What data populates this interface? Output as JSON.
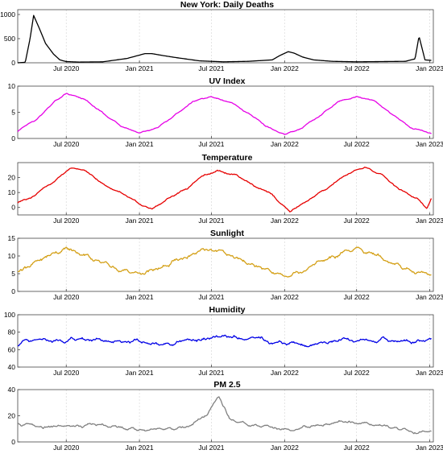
{
  "chart_data": [
    {
      "type": "line",
      "title": "New York: Daily Deaths",
      "color": "#000000",
      "x_ticks": [
        "Jul 2020",
        "Jan 2021",
        "Jul 2021",
        "Jan 2022",
        "Jul 2022",
        "Jan 2023"
      ],
      "y_ticks": [
        "0",
        "500",
        "1000"
      ],
      "ylim": [
        0,
        1100
      ],
      "grid": "x",
      "x": [
        "2020-03-01",
        "2020-03-20",
        "2020-04-01",
        "2020-04-10",
        "2020-04-25",
        "2020-05-10",
        "2020-05-30",
        "2020-06-15",
        "2020-07-01",
        "2020-08-01",
        "2020-10-01",
        "2020-12-01",
        "2021-01-15",
        "2021-02-01",
        "2021-03-01",
        "2021-04-01",
        "2021-06-01",
        "2021-08-01",
        "2021-10-01",
        "2021-12-01",
        "2021-12-20",
        "2022-01-10",
        "2022-01-25",
        "2022-02-15",
        "2022-03-15",
        "2022-05-01",
        "2022-07-01",
        "2022-09-01",
        "2022-11-01",
        "2022-11-15",
        "2022-11-25",
        "2022-12-05",
        "2022-12-20",
        "2023-01-05"
      ],
      "y": [
        0,
        10,
        500,
        980,
        700,
        400,
        180,
        60,
        25,
        15,
        20,
        90,
        190,
        190,
        150,
        110,
        40,
        20,
        30,
        60,
        150,
        230,
        200,
        120,
        60,
        30,
        20,
        25,
        30,
        60,
        80,
        550,
        60,
        50
      ]
    },
    {
      "type": "line",
      "title": "UV Index",
      "color": "#e600e6",
      "x_ticks": [
        "Jul 2020",
        "Jan 2021",
        "Jul 2021",
        "Jan 2022",
        "Jul 2022",
        "Jan 2023"
      ],
      "y_ticks": [
        "0",
        "5",
        "10"
      ],
      "ylim": [
        0,
        10
      ],
      "grid": "x",
      "x": [
        "2020-03-01",
        "2020-04-15",
        "2020-06-01",
        "2020-07-01",
        "2020-08-15",
        "2020-10-01",
        "2020-11-15",
        "2021-01-01",
        "2021-02-15",
        "2021-04-01",
        "2021-05-15",
        "2021-07-01",
        "2021-08-15",
        "2021-10-01",
        "2021-11-15",
        "2022-01-01",
        "2022-02-15",
        "2022-04-01",
        "2022-05-15",
        "2022-07-01",
        "2022-08-15",
        "2022-10-01",
        "2022-11-15",
        "2023-01-05"
      ],
      "y": [
        1.5,
        3.5,
        7,
        8.5,
        7.5,
        4.8,
        2.5,
        1,
        2,
        4.5,
        7,
        8,
        7,
        4.8,
        2.3,
        0.8,
        2,
        4.5,
        7,
        8,
        7.2,
        4.5,
        2,
        1
      ]
    },
    {
      "type": "line",
      "title": "Temperature",
      "color": "#e60000",
      "x_ticks": [
        "Jul 2020",
        "Jan 2021",
        "Jul 2021",
        "Jan 2022",
        "Jul 2022",
        "Jan 2023"
      ],
      "y_ticks": [
        "0",
        "10",
        "20"
      ],
      "ylim": [
        -5,
        30
      ],
      "grid": "x",
      "x": [
        "2020-03-01",
        "2020-04-15",
        "2020-06-01",
        "2020-07-15",
        "2020-08-15",
        "2020-10-01",
        "2020-11-15",
        "2021-01-01",
        "2021-02-01",
        "2021-03-15",
        "2021-05-01",
        "2021-06-15",
        "2021-07-15",
        "2021-09-01",
        "2021-10-15",
        "2021-12-01",
        "2022-01-15",
        "2022-03-01",
        "2022-04-15",
        "2022-06-01",
        "2022-07-20",
        "2022-09-01",
        "2022-10-15",
        "2022-12-01",
        "2022-12-25",
        "2023-01-05"
      ],
      "y": [
        3,
        9,
        18,
        26,
        25,
        16,
        9,
        2,
        -1,
        6,
        13,
        22,
        25,
        22,
        15,
        8,
        -3,
        5,
        12,
        21,
        27,
        22,
        13,
        6,
        -1,
        6
      ]
    },
    {
      "type": "line",
      "title": "Sunlight",
      "color": "#d4a017",
      "x_ticks": [
        "Jul 2020",
        "Jan 2021",
        "Jul 2021",
        "Jan 2022",
        "Jul 2022",
        "Jan 2023"
      ],
      "y_ticks": [
        "0",
        "5",
        "10",
        "15"
      ],
      "ylim": [
        0,
        15
      ],
      "grid": "x",
      "x": [
        "2020-03-01",
        "2020-04-15",
        "2020-06-01",
        "2020-07-01",
        "2020-08-15",
        "2020-10-01",
        "2020-11-15",
        "2021-01-01",
        "2021-02-15",
        "2021-04-01",
        "2021-05-15",
        "2021-07-01",
        "2021-08-15",
        "2021-10-01",
        "2021-11-15",
        "2022-01-01",
        "2022-02-15",
        "2022-04-01",
        "2022-05-15",
        "2022-07-01",
        "2022-08-15",
        "2022-10-01",
        "2022-11-15",
        "2023-01-05"
      ],
      "y": [
        6,
        8,
        11,
        12,
        10.5,
        8,
        6,
        5,
        6,
        8.5,
        10.5,
        12,
        10.5,
        8,
        6,
        4.5,
        6,
        8.5,
        10,
        12,
        10.5,
        8,
        6,
        5
      ]
    },
    {
      "type": "line",
      "title": "Humidity",
      "color": "#0000e6",
      "x_ticks": [
        "Jul 2020",
        "Jan 2021",
        "Jul 2021",
        "Jan 2022",
        "Jul 2022",
        "Jan 2023"
      ],
      "y_ticks": [
        "40",
        "60",
        "80",
        "100"
      ],
      "ylim": [
        40,
        100
      ],
      "grid": "x",
      "x": [
        "2020-03-01",
        "2020-06-01",
        "2020-09-01",
        "2020-12-01",
        "2021-03-01",
        "2021-06-01",
        "2021-09-01",
        "2021-12-01",
        "2022-03-01",
        "2022-06-01",
        "2022-09-01",
        "2022-12-01",
        "2023-01-05"
      ],
      "y": [
        68,
        70,
        72,
        70,
        66,
        72,
        74,
        70,
        66,
        70,
        71,
        70,
        72
      ]
    },
    {
      "type": "line",
      "title": "PM 2.5",
      "color": "#808080",
      "x_ticks": [
        "Jul 2020",
        "Jan 2021",
        "Jul 2021",
        "Jan 2022",
        "Jul 2022",
        "Jan 2023"
      ],
      "y_ticks": [
        "0",
        "20",
        "40"
      ],
      "ylim": [
        0,
        40
      ],
      "grid": "x",
      "x": [
        "2020-03-01",
        "2020-05-01",
        "2020-07-01",
        "2020-09-01",
        "2020-11-01",
        "2021-01-01",
        "2021-03-01",
        "2021-05-01",
        "2021-06-20",
        "2021-07-20",
        "2021-08-15",
        "2021-10-01",
        "2021-12-01",
        "2022-02-01",
        "2022-04-01",
        "2022-06-01",
        "2022-08-01",
        "2022-10-01",
        "2022-12-01",
        "2023-01-05"
      ],
      "y": [
        14,
        11,
        12,
        13,
        12,
        9,
        10,
        12,
        20,
        35,
        18,
        13,
        11,
        10,
        13,
        15,
        14,
        11,
        7,
        8
      ]
    }
  ]
}
